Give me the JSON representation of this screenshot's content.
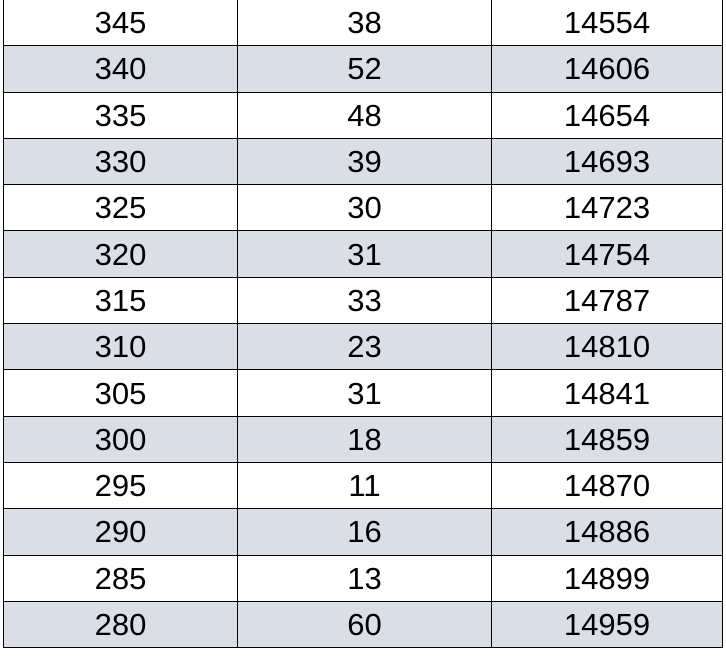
{
  "table": {
    "rows": [
      [
        "345",
        "38",
        "14554"
      ],
      [
        "340",
        "52",
        "14606"
      ],
      [
        "335",
        "48",
        "14654"
      ],
      [
        "330",
        "39",
        "14693"
      ],
      [
        "325",
        "30",
        "14723"
      ],
      [
        "320",
        "31",
        "14754"
      ],
      [
        "315",
        "33",
        "14787"
      ],
      [
        "310",
        "23",
        "14810"
      ],
      [
        "305",
        "31",
        "14841"
      ],
      [
        "300",
        "18",
        "14859"
      ],
      [
        "295",
        "11",
        "14870"
      ],
      [
        "290",
        "16",
        "14886"
      ],
      [
        "285",
        "13",
        "14899"
      ],
      [
        "280",
        "60",
        "14959"
      ]
    ],
    "stripe_color": "#d9dee7"
  }
}
